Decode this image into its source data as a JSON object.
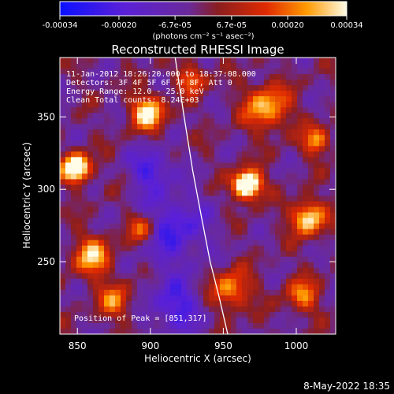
{
  "colorbar": {
    "tick_labels": [
      "-0.00034",
      "-0.00020",
      "-6.7e-05",
      "6.7e-05",
      "0.00020",
      "0.00034"
    ],
    "tick_values": [
      -0.00034,
      -0.0002,
      -6.7e-05,
      6.7e-05,
      0.0002,
      0.00034
    ],
    "range": [
      -0.00034,
      0.00034
    ],
    "units_label": "(photons cm⁻² s⁻¹ asec⁻²)"
  },
  "chart_data": {
    "type": "heatmap",
    "title": "Reconstructed RHESSI Image",
    "xlabel": "Heliocentric X (arcsec)",
    "ylabel": "Heliocentric Y (arcsec)",
    "xlim": [
      838,
      1027
    ],
    "ylim": [
      200,
      391
    ],
    "x_ticks": [
      850,
      900,
      950,
      1000
    ],
    "y_ticks": [
      250,
      300,
      350
    ],
    "annotations": {
      "time": "11-Jan-2012 18:26:20.000 to 18:37:08.000",
      "detectors": "Detectors: 3F 4F 5F 6F 7F 8F, Att 0",
      "energy": "Energy Range: 12.0 - 25.0 keV",
      "method": "Clean     Total counts: 8.24E+03",
      "peak": "Position of Peak = [851,317]"
    },
    "peak_position": [
      851,
      317
    ],
    "limb_curve_x": [
      917,
      923,
      929,
      935,
      941,
      947,
      953
    ],
    "limb_curve_y": [
      391,
      351,
      313,
      281,
      250,
      226,
      200
    ]
  },
  "footer": {
    "date": "8-May-2022 18:35"
  }
}
